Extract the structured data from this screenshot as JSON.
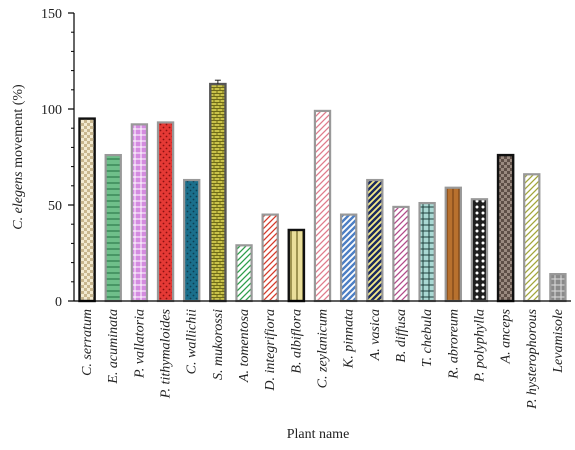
{
  "chart_data": {
    "type": "bar",
    "xlabel": "Plant name",
    "ylabel_italic": "C. elegens",
    "ylabel_rest": " movement (%)",
    "ylim": [
      0,
      150
    ],
    "yticks": [
      "0",
      "50",
      "100",
      "150"
    ],
    "grid": false,
    "categories": [
      "C. serratum",
      "E. acuminata",
      "P. vallatoria",
      "P. tithymaloides",
      "C. wallichii",
      "S. mukorossi",
      "A. tomentosa",
      "D. integrifiora",
      "B. albiflora",
      "C. zeylanicum",
      "K. pinnata",
      "A. vasica",
      "B. diffusa",
      "T. chebula",
      "R. abroreum",
      "P. polyphylla",
      "A. anceps",
      "P. hysterophorous",
      "Levamisole"
    ],
    "values": [
      95,
      76,
      92,
      93,
      63,
      113,
      29,
      45,
      37,
      99,
      45,
      63,
      49,
      51,
      59,
      53,
      76,
      66,
      14
    ],
    "errors": [
      0,
      0,
      0,
      0,
      0,
      2,
      0,
      0,
      0,
      0,
      0,
      0,
      0,
      0,
      0,
      0,
      0,
      0,
      0
    ],
    "bar_styles": [
      {
        "fill": "#f3ead0",
        "pattern": "checker",
        "pcolor": "#c9b78f",
        "stroke": "#111111"
      },
      {
        "fill": "#6fbf8a",
        "pattern": "hlines",
        "pcolor": "#2d7a4c",
        "stroke": "#999999"
      },
      {
        "fill": "#d48be0",
        "pattern": "grid",
        "pcolor": "#ffffff",
        "stroke": "#999999"
      },
      {
        "fill": "#e53935",
        "pattern": "dots",
        "pcolor": "#8b1010",
        "stroke": "#999999"
      },
      {
        "fill": "#1a6f8c",
        "pattern": "dots",
        "pcolor": "#0c3f52",
        "stroke": "#999999"
      },
      {
        "fill": "#c9c24a",
        "pattern": "bricks",
        "pcolor": "#6e6a18",
        "stroke": "#555555"
      },
      {
        "fill": "#ffffff",
        "pattern": "diag",
        "pcolor": "#2e9e4a",
        "stroke": "#999999"
      },
      {
        "fill": "#ffffff",
        "pattern": "diag",
        "pcolor": "#d63a2a",
        "stroke": "#999999"
      },
      {
        "fill": "#eadf9a",
        "pattern": "vlines",
        "pcolor": "#6b6320",
        "stroke": "#111111"
      },
      {
        "fill": "#ffffff",
        "pattern": "diag",
        "pcolor": "#e07b8c",
        "stroke": "#999999"
      },
      {
        "fill": "#ffffff",
        "pattern": "diag-thick",
        "pcolor": "#4d7fc4",
        "stroke": "#999999"
      },
      {
        "fill": "#f5ea8a",
        "pattern": "diag-thick",
        "pcolor": "#1b2a5e",
        "stroke": "#999999"
      },
      {
        "fill": "#ffffff",
        "pattern": "diag",
        "pcolor": "#b24a8a",
        "stroke": "#999999"
      },
      {
        "fill": "#a9d8d3",
        "pattern": "grid",
        "pcolor": "#1e3f3c",
        "stroke": "#999999"
      },
      {
        "fill": "#b8712e",
        "pattern": "vlines",
        "pcolor": "#7a4516",
        "stroke": "#999999"
      },
      {
        "fill": "#1e1e1e",
        "pattern": "polka",
        "pcolor": "#ffffff",
        "stroke": "#999999"
      },
      {
        "fill": "#9a8a80",
        "pattern": "checker",
        "pcolor": "#5e4f47",
        "stroke": "#111111"
      },
      {
        "fill": "#ffffff",
        "pattern": "diag",
        "pcolor": "#a2a63a",
        "stroke": "#999999"
      },
      {
        "fill": "#8a8a8a",
        "pattern": "grid",
        "pcolor": "#dddddd",
        "stroke": "#999999"
      }
    ]
  }
}
